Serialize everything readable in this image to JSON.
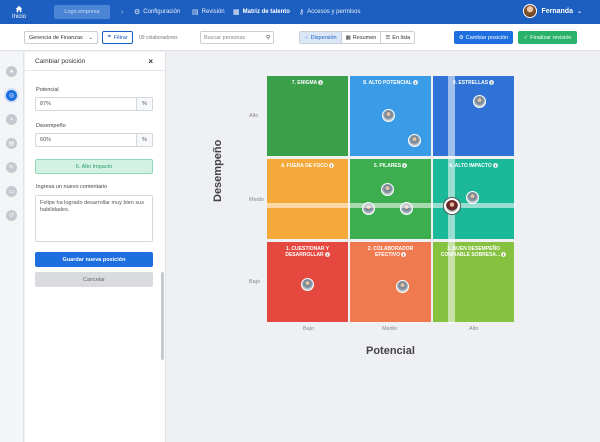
{
  "topbar": {
    "home_label": "Inicio",
    "logo_label": "Logo empresa",
    "nav": [
      {
        "label": "Configuración",
        "icon": "gear-icon"
      },
      {
        "label": "Revisión",
        "icon": "doc-icon"
      },
      {
        "label": "Matriz de talento",
        "icon": "grid-icon"
      },
      {
        "label": "Accesos y permisos",
        "icon": "key-icon"
      }
    ],
    "user_name": "Fernanda"
  },
  "toolbar": {
    "area_select": "Gerencia de Finanzas",
    "filter_label": "Filtrar",
    "collaborators": "09 colaboradores",
    "search_placeholder": "Buscar personas",
    "views": [
      "Dispersión",
      "Resumen",
      "En lista"
    ],
    "active_view": "Dispersión",
    "change_position": "Cambiar posición",
    "finish_review": "Finalizar revisión"
  },
  "panel": {
    "title": "Cambiar posición",
    "potential_label": "Potencial",
    "potential_value": "87%",
    "performance_label": "Desempeño",
    "performance_value": "60%",
    "unit": "%",
    "result_badge": "6. Alto Impacto",
    "comment_label": "Ingresa un nuevo comentario",
    "comment_text": "Felipe ha logrado desarrollar muy bien sus habilidades.",
    "save_label": "Guardar nueva posición",
    "cancel_label": "Cancelar"
  },
  "matrix": {
    "y_axis": "Desempeño",
    "x_axis": "Potencial",
    "rows": [
      "Alto",
      "Medio",
      "Bajo"
    ],
    "cols": [
      "Bajo",
      "Medio",
      "Alto"
    ],
    "cells": [
      {
        "title": "7. ENIGMA",
        "color": "#3aa04a"
      },
      {
        "title": "8. ALTO POTENCIAL",
        "color": "#3a9be6"
      },
      {
        "title": "9. ESTRELLAS",
        "color": "#2f73d6"
      },
      {
        "title": "4. FUERA DE FOCO",
        "color": "#f6a93b"
      },
      {
        "title": "5. PILARES",
        "color": "#3cae4e"
      },
      {
        "title": "6. ALTO IMPACTO",
        "color": "#1cb89a"
      },
      {
        "title": "1. CUESTIONAR Y DESARROLLAR",
        "color": "#e5483f"
      },
      {
        "title": "2. COLABORADOR EFECTIVO",
        "color": "#f07a50"
      },
      {
        "title": "3. BUEN DESEMPEÑO CONFIABLE SOBRESA...",
        "color": "#86c240"
      }
    ]
  },
  "colors": {
    "brand": "#1d5fc0",
    "primary_button": "#1d6fe0",
    "success_button": "#2ab16a"
  }
}
